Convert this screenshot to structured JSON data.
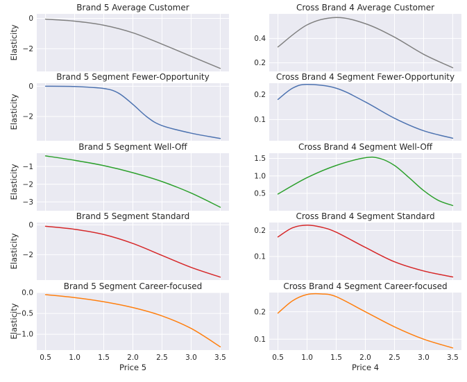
{
  "chart_data": [
    {
      "type": "line",
      "title": "Brand 5 Average Customer",
      "ylabel": "Elasticity",
      "xlabel": "",
      "color": "#808080",
      "xlim": [
        0.35,
        3.65
      ],
      "ylim": [
        -3.5,
        0.3
      ],
      "yticks": [
        0,
        -2
      ],
      "ytick_labels": [
        "0",
        "−2"
      ],
      "x": [
        0.5,
        1.0,
        1.5,
        2.0,
        2.5,
        3.0,
        3.5
      ],
      "y": [
        -0.05,
        -0.18,
        -0.45,
        -0.95,
        -1.7,
        -2.5,
        -3.3
      ]
    },
    {
      "type": "line",
      "title": "Cross Brand 4 Average Customer",
      "ylabel": "",
      "xlabel": "",
      "color": "#808080",
      "xlim": [
        0.35,
        3.65
      ],
      "ylim": [
        0.13,
        0.6
      ],
      "yticks": [
        0.4,
        0.2
      ],
      "ytick_labels": [
        "0.4",
        "0.2"
      ],
      "x": [
        0.5,
        1.0,
        1.5,
        2.0,
        2.5,
        3.0,
        3.5
      ],
      "y": [
        0.33,
        0.51,
        0.57,
        0.52,
        0.41,
        0.27,
        0.16
      ]
    },
    {
      "type": "line",
      "title": "Brand 5 Segment Fewer-Opportunity",
      "ylabel": "Elasticity",
      "xlabel": "",
      "color": "#4c72b0",
      "xlim": [
        0.35,
        3.65
      ],
      "ylim": [
        -3.6,
        0.2
      ],
      "yticks": [
        0,
        -2
      ],
      "ytick_labels": [
        "0",
        "−2"
      ],
      "x": [
        0.5,
        1.0,
        1.5,
        1.75,
        2.0,
        2.25,
        2.5,
        3.0,
        3.5
      ],
      "y": [
        0.0,
        -0.02,
        -0.15,
        -0.45,
        -1.2,
        -2.05,
        -2.6,
        -3.1,
        -3.45
      ]
    },
    {
      "type": "line",
      "title": "Cross Brand 4 Segment Fewer-Opportunity",
      "ylabel": "",
      "xlabel": "",
      "color": "#4c72b0",
      "xlim": [
        0.35,
        3.65
      ],
      "ylim": [
        0.015,
        0.245
      ],
      "yticks": [
        0.2,
        0.1
      ],
      "ytick_labels": [
        "0.2",
        "0.1"
      ],
      "x": [
        0.5,
        0.75,
        1.0,
        1.5,
        2.0,
        2.5,
        3.0,
        3.5
      ],
      "y": [
        0.18,
        0.225,
        0.24,
        0.225,
        0.17,
        0.105,
        0.055,
        0.025
      ]
    },
    {
      "type": "line",
      "title": "Brand 5 Segment Well-Off",
      "ylabel": "Elasticity",
      "xlabel": "",
      "color": "#2ca02c",
      "xlim": [
        0.35,
        3.65
      ],
      "ylim": [
        -3.5,
        -0.25
      ],
      "yticks": [
        -1,
        -2,
        -3
      ],
      "ytick_labels": [
        "−1",
        "−2",
        "−3"
      ],
      "x": [
        0.5,
        1.0,
        1.5,
        2.0,
        2.5,
        3.0,
        3.5
      ],
      "y": [
        -0.4,
        -0.65,
        -0.95,
        -1.35,
        -1.85,
        -2.5,
        -3.3
      ]
    },
    {
      "type": "line",
      "title": "Cross Brand 4 Segment Well-Off",
      "ylabel": "",
      "xlabel": "",
      "color": "#2ca02c",
      "xlim": [
        0.35,
        3.65
      ],
      "ylim": [
        0.0,
        1.65
      ],
      "yticks": [
        1.5,
        1.0,
        0.5
      ],
      "ytick_labels": [
        "1.5",
        "1.0",
        "0.5"
      ],
      "x": [
        0.5,
        1.0,
        1.5,
        2.0,
        2.25,
        2.5,
        2.75,
        3.0,
        3.25,
        3.5
      ],
      "y": [
        0.48,
        0.95,
        1.3,
        1.52,
        1.5,
        1.3,
        0.95,
        0.58,
        0.3,
        0.15
      ]
    },
    {
      "type": "line",
      "title": "Brand 5 Segment Standard",
      "ylabel": "Elasticity",
      "xlabel": "",
      "color": "#d62728",
      "xlim": [
        0.35,
        3.65
      ],
      "ylim": [
        -3.7,
        0.15
      ],
      "yticks": [
        0,
        -2
      ],
      "ytick_labels": [
        "0",
        "−2"
      ],
      "x": [
        0.5,
        1.0,
        1.5,
        2.0,
        2.5,
        3.0,
        3.5
      ],
      "y": [
        -0.1,
        -0.3,
        -0.65,
        -1.25,
        -2.05,
        -2.85,
        -3.5
      ]
    },
    {
      "type": "line",
      "title": "Cross Brand 4 Segment Standard",
      "ylabel": "",
      "xlabel": "",
      "color": "#d62728",
      "xlim": [
        0.35,
        3.65
      ],
      "ylim": [
        0.01,
        0.23
      ],
      "yticks": [
        0.2,
        0.1
      ],
      "ytick_labels": [
        "0.2",
        "0.1"
      ],
      "x": [
        0.5,
        0.75,
        1.0,
        1.25,
        1.5,
        2.0,
        2.5,
        3.0,
        3.5
      ],
      "y": [
        0.175,
        0.21,
        0.22,
        0.212,
        0.193,
        0.135,
        0.08,
        0.045,
        0.022
      ]
    },
    {
      "type": "line",
      "title": "Brand 5 Segment Career-focused",
      "ylabel": "Elasticity",
      "xlabel": "Price 5",
      "color": "#ff7f0e",
      "xlim": [
        0.35,
        3.65
      ],
      "ylim": [
        -1.38,
        0.0
      ],
      "yticks": [
        0.0,
        -0.5,
        -1.0
      ],
      "ytick_labels": [
        "0.0",
        "−0.5",
        "−1.0"
      ],
      "xticks": [
        0.5,
        1.0,
        1.5,
        2.0,
        2.5,
        3.0,
        3.5
      ],
      "xtick_labels": [
        "0.5",
        "1.0",
        "1.5",
        "2.0",
        "2.5",
        "3.0",
        "3.5"
      ],
      "x": [
        0.5,
        1.0,
        1.5,
        2.0,
        2.5,
        3.0,
        3.5
      ],
      "y": [
        -0.05,
        -0.12,
        -0.22,
        -0.36,
        -0.56,
        -0.86,
        -1.3
      ]
    },
    {
      "type": "line",
      "title": "Cross Brand 4 Segment Career-focused",
      "ylabel": "",
      "xlabel": "Price 4",
      "color": "#ff7f0e",
      "xlim": [
        0.35,
        3.65
      ],
      "ylim": [
        0.06,
        0.27
      ],
      "yticks": [
        0.2,
        0.1
      ],
      "ytick_labels": [
        "0.2",
        "0.1"
      ],
      "xticks": [
        0.5,
        1.0,
        1.5,
        2.0,
        2.5,
        3.0,
        3.5
      ],
      "xtick_labels": [
        "0.5",
        "1.0",
        "1.5",
        "2.0",
        "2.5",
        "3.0",
        "3.5"
      ],
      "x": [
        0.5,
        0.75,
        1.0,
        1.25,
        1.5,
        2.0,
        2.5,
        3.0,
        3.5
      ],
      "y": [
        0.195,
        0.24,
        0.263,
        0.265,
        0.255,
        0.2,
        0.145,
        0.1,
        0.068
      ]
    }
  ]
}
